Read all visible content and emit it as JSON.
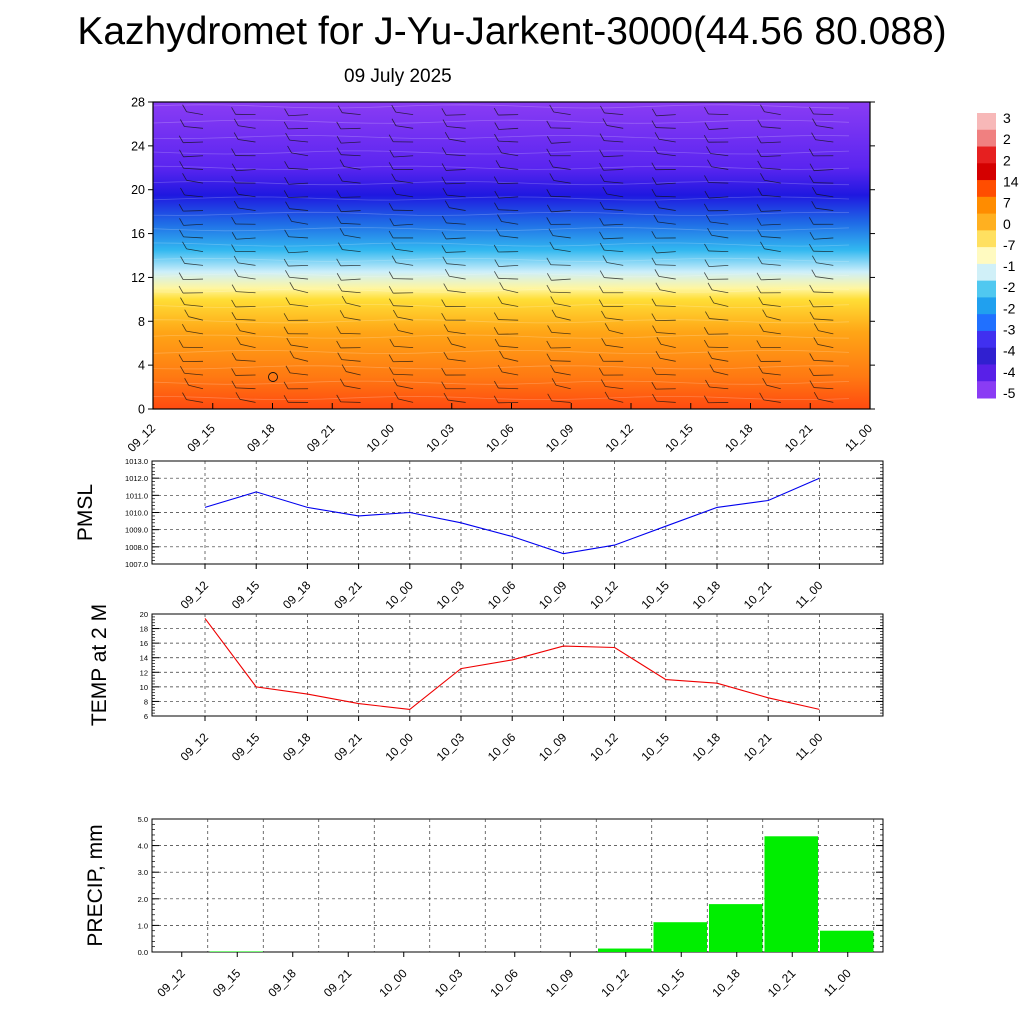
{
  "title": "Kazhydromet for J-Yu-Jarkent-3000(44.56 80.088)",
  "date": "09 July 2025",
  "chart_data": [
    {
      "type": "heatmap",
      "y_ticks": [
        0,
        4,
        8,
        12,
        16,
        20,
        24,
        28
      ],
      "ylim": [
        0,
        28
      ],
      "x_ticks": [
        "09_12",
        "09_15",
        "09_18",
        "09_21",
        "10_00",
        "10_03",
        "10_06",
        "10_09",
        "10_12",
        "10_15",
        "10_18",
        "10_21",
        "11_00"
      ],
      "color_stops": [
        {
          "level": 0,
          "color": "#ff4a10"
        },
        {
          "level": 3,
          "color": "#ff7a12"
        },
        {
          "level": 7,
          "color": "#ffa516"
        },
        {
          "level": 10,
          "color": "#ffde36"
        },
        {
          "level": 11,
          "color": "#fff6a0"
        },
        {
          "level": 12.5,
          "color": "#cdeffa"
        },
        {
          "level": 14.5,
          "color": "#32b8f0"
        },
        {
          "level": 17,
          "color": "#1f6ae6"
        },
        {
          "level": 19.5,
          "color": "#1f18e0"
        },
        {
          "level": 22,
          "color": "#5a25f0"
        },
        {
          "level": 28,
          "color": "#8a3cf4"
        }
      ],
      "colorbar_labels": [
        "3",
        "2",
        "2",
        "14",
        "7",
        "0",
        "-7",
        "-1",
        "-2",
        "-2",
        "-3",
        "-4",
        "-4",
        "-5"
      ],
      "colorbar_colors": [
        "#f7b8b8",
        "#f08080",
        "#e62020",
        "#d40000",
        "#ff4d00",
        "#ff8c00",
        "#ffb020",
        "#ffe060",
        "#fffac0",
        "#d0f0f8",
        "#50c8f0",
        "#20a0ef",
        "#2070ff",
        "#4030f0",
        "#3020d0",
        "#5820e8",
        "#8a3cf4"
      ]
    },
    {
      "type": "line",
      "ylabel": "PMSL",
      "ylim": [
        1007.0,
        1013.0
      ],
      "y_ticks": [
        "1007.0",
        "1008.0",
        "1009.0",
        "1010.0",
        "1011.0",
        "1012.0",
        "1013.0"
      ],
      "categories": [
        "09_12",
        "09_15",
        "09_18",
        "09_21",
        "10_00",
        "10_03",
        "10_06",
        "10_09",
        "10_12",
        "10_15",
        "10_18",
        "10_21",
        "11_00"
      ],
      "values": [
        1010.3,
        1011.2,
        1010.3,
        1009.8,
        1010.0,
        1009.4,
        1008.6,
        1007.6,
        1008.1,
        1009.2,
        1010.3,
        1010.7,
        1012.0
      ],
      "color": "#0000ee"
    },
    {
      "type": "line",
      "ylabel": "TEMP at 2 M",
      "ylim": [
        6,
        20
      ],
      "y_ticks": [
        "6",
        "8",
        "10",
        "12",
        "14",
        "16",
        "18",
        "20"
      ],
      "categories": [
        "09_12",
        "09_15",
        "09_18",
        "09_21",
        "10_00",
        "10_03",
        "10_06",
        "10_09",
        "10_12",
        "10_15",
        "10_18",
        "10_21",
        "11_00"
      ],
      "values": [
        19.4,
        10.0,
        9.0,
        7.7,
        6.9,
        12.5,
        13.7,
        15.6,
        15.4,
        11.0,
        10.5,
        8.5,
        6.9
      ],
      "color": "#ee0000"
    },
    {
      "type": "bar",
      "ylabel": "PRECIP, mm",
      "ylim": [
        0,
        5.0
      ],
      "y_ticks": [
        "0.0",
        "1.0",
        "2.0",
        "3.0",
        "4.0",
        "5.0"
      ],
      "categories": [
        "09_12",
        "09_15",
        "09_18",
        "09_21",
        "10_00",
        "10_03",
        "10_06",
        "10_09",
        "10_12",
        "10_15",
        "10_18",
        "10_21",
        "11_00"
      ],
      "values": [
        0.0,
        0.02,
        0.0,
        0.0,
        0.0,
        0.0,
        0.0,
        0.0,
        0.13,
        1.12,
        1.8,
        4.35,
        0.8
      ],
      "color": "#00ee00"
    }
  ]
}
